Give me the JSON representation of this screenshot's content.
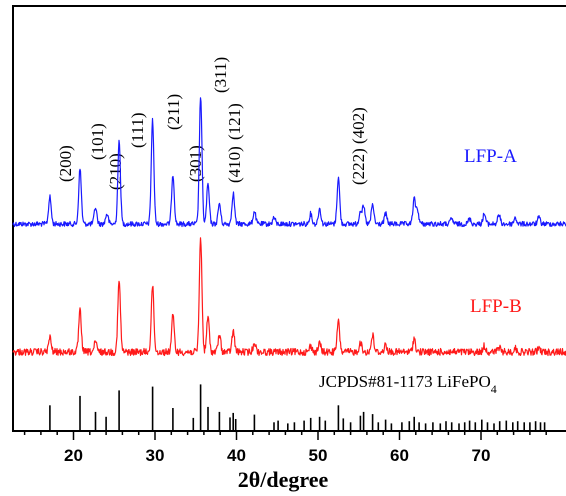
{
  "chart_data": {
    "type": "line",
    "xlabel": "2θ/degree",
    "xlim": [
      10,
      78
    ],
    "x_ticks": [
      20,
      30,
      40,
      50,
      60,
      70
    ],
    "grid": false,
    "peak_labels": [
      "(200)",
      "(101)",
      "(210)",
      "(111)",
      "(211)",
      "(301)",
      "(311)",
      "(410)",
      "(121)",
      "(222)",
      "(402)"
    ],
    "series": [
      {
        "name": "LFP-A",
        "color": "#1a1aff",
        "peaks": [
          [
            17.1,
            0.21
          ],
          [
            20.8,
            0.43
          ],
          [
            22.7,
            0.13
          ],
          [
            24.1,
            0.08
          ],
          [
            25.6,
            0.64
          ],
          [
            29.7,
            0.81
          ],
          [
            32.2,
            0.39
          ],
          [
            35.6,
            1.0
          ],
          [
            36.5,
            0.31
          ],
          [
            37.9,
            0.16
          ],
          [
            39.6,
            0.24
          ],
          [
            42.2,
            0.1
          ],
          [
            44.6,
            0.05
          ],
          [
            49.1,
            0.08
          ],
          [
            50.2,
            0.12
          ],
          [
            52.5,
            0.36
          ],
          [
            55.2,
            0.1
          ],
          [
            55.6,
            0.13
          ],
          [
            56.7,
            0.15
          ],
          [
            58.3,
            0.08
          ],
          [
            61.8,
            0.19
          ],
          [
            62.2,
            0.11
          ],
          [
            66.4,
            0.04
          ],
          [
            68.6,
            0.04
          ],
          [
            70.4,
            0.08
          ],
          [
            72.2,
            0.07
          ],
          [
            74.2,
            0.05
          ],
          [
            77.1,
            0.05
          ]
        ]
      },
      {
        "name": "LFP-B",
        "color": "#ff1a1a",
        "peaks": [
          [
            17.1,
            0.12
          ],
          [
            20.8,
            0.34
          ],
          [
            22.7,
            0.08
          ],
          [
            25.6,
            0.59
          ],
          [
            29.7,
            0.55
          ],
          [
            32.2,
            0.3
          ],
          [
            35.6,
            0.95
          ],
          [
            36.5,
            0.29
          ],
          [
            37.9,
            0.14
          ],
          [
            39.6,
            0.17
          ],
          [
            42.2,
            0.08
          ],
          [
            49.1,
            0.05
          ],
          [
            50.2,
            0.07
          ],
          [
            52.5,
            0.25
          ],
          [
            55.2,
            0.08
          ],
          [
            56.7,
            0.14
          ],
          [
            58.3,
            0.06
          ],
          [
            61.8,
            0.11
          ],
          [
            70.4,
            0.05
          ],
          [
            72.2,
            0.04
          ],
          [
            74.2,
            0.03
          ],
          [
            77.1,
            0.03
          ]
        ]
      }
    ],
    "reference": {
      "name": "JCPDS#81-1173 LiFePO",
      "subscript": "4",
      "color": "#000000",
      "lines": [
        [
          17.1,
          0.45
        ],
        [
          20.8,
          0.62
        ],
        [
          22.7,
          0.33
        ],
        [
          24.0,
          0.24
        ],
        [
          25.6,
          0.72
        ],
        [
          29.7,
          0.79
        ],
        [
          32.2,
          0.4
        ],
        [
          34.7,
          0.22
        ],
        [
          35.6,
          0.83
        ],
        [
          36.5,
          0.42
        ],
        [
          37.9,
          0.33
        ],
        [
          39.2,
          0.23
        ],
        [
          39.6,
          0.31
        ],
        [
          39.9,
          0.2
        ],
        [
          42.2,
          0.28
        ],
        [
          44.6,
          0.14
        ],
        [
          45.1,
          0.17
        ],
        [
          46.3,
          0.12
        ],
        [
          47.1,
          0.14
        ],
        [
          48.3,
          0.17
        ],
        [
          49.1,
          0.22
        ],
        [
          50.2,
          0.24
        ],
        [
          50.9,
          0.17
        ],
        [
          52.5,
          0.45
        ],
        [
          53.1,
          0.21
        ],
        [
          54.0,
          0.14
        ],
        [
          55.2,
          0.26
        ],
        [
          55.6,
          0.33
        ],
        [
          56.7,
          0.29
        ],
        [
          57.4,
          0.14
        ],
        [
          58.3,
          0.19
        ],
        [
          59.0,
          0.12
        ],
        [
          60.3,
          0.14
        ],
        [
          61.2,
          0.16
        ],
        [
          61.8,
          0.24
        ],
        [
          62.4,
          0.14
        ],
        [
          63.2,
          0.12
        ],
        [
          64.1,
          0.14
        ],
        [
          65.0,
          0.12
        ],
        [
          65.7,
          0.16
        ],
        [
          66.4,
          0.14
        ],
        [
          67.3,
          0.12
        ],
        [
          68.0,
          0.14
        ],
        [
          68.6,
          0.17
        ],
        [
          69.3,
          0.14
        ],
        [
          70.1,
          0.19
        ],
        [
          70.8,
          0.14
        ],
        [
          71.6,
          0.12
        ],
        [
          72.3,
          0.16
        ],
        [
          73.1,
          0.17
        ],
        [
          73.9,
          0.14
        ],
        [
          74.5,
          0.16
        ],
        [
          75.3,
          0.14
        ],
        [
          76.0,
          0.14
        ],
        [
          76.7,
          0.16
        ],
        [
          77.3,
          0.14
        ],
        [
          77.8,
          0.14
        ]
      ]
    }
  }
}
